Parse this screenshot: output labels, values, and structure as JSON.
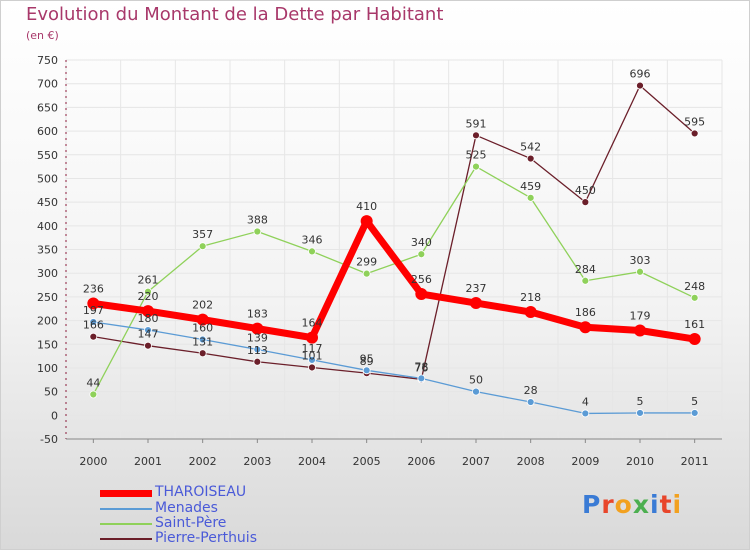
{
  "title": "Evolution du Montant de la Dette par Habitant",
  "subtitle": "(en €)",
  "logo": "Proxiti",
  "colors": {
    "title": "#a8386a",
    "grid": "#e6e6e6",
    "axis_text": "#333333",
    "legend_text": "#4a5ad8"
  },
  "chart_data": {
    "type": "line",
    "title": "Evolution du Montant de la Dette par Habitant",
    "subtitle": "(en €)",
    "xlabel": "",
    "ylabel": "",
    "x": [
      "2000",
      "2001",
      "2002",
      "2003",
      "2004",
      "2005",
      "2006",
      "2007",
      "2008",
      "2009",
      "2010",
      "2011"
    ],
    "ylim": [
      -50,
      750
    ],
    "yticks": [
      "-50",
      "0",
      "50",
      "100",
      "150",
      "200",
      "250",
      "300",
      "350",
      "400",
      "450",
      "500",
      "550",
      "600",
      "650",
      "700",
      "750"
    ],
    "grid": true,
    "legend_position": "bottom-left",
    "series": [
      {
        "name": "Pierre-Perthuis",
        "color": "#6b1f2a",
        "width": 1.3,
        "dot": 3.5,
        "label_dy": -8,
        "values": [
          166,
          147,
          131,
          113,
          101,
          89,
          76,
          591,
          542,
          450,
          696,
          595
        ],
        "labels": [
          "166",
          "147",
          "131",
          "113",
          "101",
          "89",
          "76",
          "591",
          "542",
          "450",
          "696",
          "595"
        ]
      },
      {
        "name": "Saint-Père",
        "color": "#8fd15a",
        "width": 1.3,
        "dot": 3.5,
        "label_dy": -8,
        "values": [
          44,
          261,
          357,
          388,
          346,
          299,
          340,
          525,
          459,
          284,
          303,
          248
        ],
        "labels": [
          "44",
          "261",
          "357",
          "388",
          "346",
          "299",
          "340",
          "525",
          "459",
          "284",
          "303",
          "248"
        ]
      },
      {
        "name": "Menades",
        "color": "#5b9bd5",
        "width": 1.3,
        "dot": 3.5,
        "label_dy": -8,
        "values": [
          197,
          180,
          160,
          139,
          117,
          95,
          78,
          50,
          28,
          4,
          5,
          5
        ],
        "labels": [
          "197",
          "180",
          "160",
          "139",
          "117",
          "95",
          "78",
          "50",
          "28",
          "4",
          "5",
          "5"
        ]
      },
      {
        "name": "THAROISEAU",
        "color": "#ff0000",
        "width": 7,
        "dot": 6,
        "label_dy": -11,
        "values": [
          236,
          220,
          202,
          183,
          164,
          410,
          256,
          237,
          218,
          186,
          179,
          161
        ],
        "labels": [
          "236",
          "220",
          "202",
          "183",
          "164",
          "410",
          "256",
          "237",
          "218",
          "186",
          "179",
          "161"
        ]
      }
    ]
  },
  "legend": [
    {
      "label": "THAROISEAU",
      "color": "#ff0000",
      "width": 7
    },
    {
      "label": "Menades",
      "color": "#5b9bd5",
      "width": 2
    },
    {
      "label": "Saint-Père",
      "color": "#8fd15a",
      "width": 2
    },
    {
      "label": "Pierre-Perthuis",
      "color": "#6b1f2a",
      "width": 2
    }
  ]
}
